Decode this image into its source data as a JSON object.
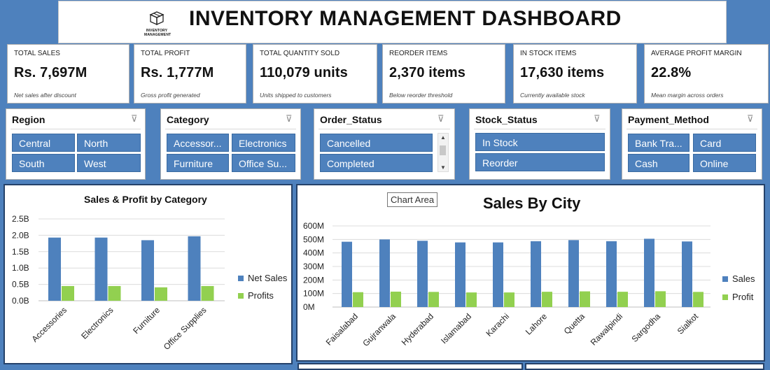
{
  "header": {
    "title": "INVENTORY MANAGEMENT DASHBOARD",
    "logo_text": "INVENTORY MANAGEMENT"
  },
  "kpis": [
    {
      "label": "TOTAL SALES",
      "value": "Rs. 7,697M",
      "sub": "Net sales after discount"
    },
    {
      "label": "TOTAL PROFIT",
      "value": "Rs. 1,777M",
      "sub": "Gross profit generated"
    },
    {
      "label": "TOTAL QUANTITY SOLD",
      "value": "110,079 units",
      "sub": "Units shipped to customers"
    },
    {
      "label": "REORDER ITEMS",
      "value": "2,370 items",
      "sub": "Below reorder threshold"
    },
    {
      "label": "IN STOCK ITEMS",
      "value": "17,630 items",
      "sub": "Currently available stock"
    },
    {
      "label": "AVERAGE PROFIT MARGIN",
      "value": "22.8%",
      "sub": "Mean margin across orders"
    }
  ],
  "slicers": [
    {
      "title": "Region",
      "items": [
        "Central",
        "North",
        "South",
        "West"
      ]
    },
    {
      "title": "Category",
      "items": [
        "Accessor...",
        "Electronics",
        "Furniture",
        "Office Su..."
      ]
    },
    {
      "title": "Order_Status",
      "items": [
        "Cancelled",
        "Completed"
      ]
    },
    {
      "title": "Stock_Status",
      "items": [
        "In Stock",
        "Reorder"
      ]
    },
    {
      "title": "Payment_Method",
      "items": [
        "Bank Tra...",
        "Card",
        "Cash",
        "Online"
      ]
    }
  ],
  "icons": {
    "clear_filter": "filter-clear-icon",
    "scroll_up": "chevron-up-icon",
    "scroll_down": "chevron-down-icon"
  },
  "colors": {
    "background": "#4e81bd",
    "series_blue": "#4e81bd",
    "series_green": "#92d050",
    "border_dark": "#25426a"
  },
  "tooltip": "Chart Area",
  "chart_data": [
    {
      "type": "bar",
      "title": "Sales & Profit by Category",
      "categories": [
        "Accessories",
        "Electronics",
        "Furniture",
        "Office Supplies"
      ],
      "series": [
        {
          "name": "Net Sales",
          "values": [
            1.93,
            1.93,
            1.85,
            1.97
          ]
        },
        {
          "name": "Profits",
          "values": [
            0.45,
            0.45,
            0.41,
            0.45
          ]
        }
      ],
      "yticks": [
        "0.0B",
        "0.5B",
        "1.0B",
        "1.5B",
        "2.0B",
        "2.5B"
      ],
      "ylim": [
        0,
        2.5
      ],
      "unit": "B",
      "grid": true,
      "legend": "right"
    },
    {
      "type": "bar",
      "title": "Sales By City",
      "categories": [
        "Faisalabad",
        "Gujranwala",
        "Hyderabad",
        "Islamabad",
        "Karachi",
        "Lahore",
        "Quetta",
        "Rawalpindi",
        "Sargodha",
        "Sialkot"
      ],
      "series": [
        {
          "name": "Sales",
          "values": [
            483,
            500,
            490,
            478,
            478,
            487,
            495,
            487,
            505,
            485
          ]
        },
        {
          "name": "Profit",
          "values": [
            110,
            114,
            112,
            108,
            108,
            113,
            116,
            113,
            117,
            112
          ]
        }
      ],
      "yticks": [
        "0M",
        "100M",
        "200M",
        "300M",
        "400M",
        "500M",
        "600M"
      ],
      "ylim": [
        0,
        600
      ],
      "unit": "M",
      "grid": true,
      "legend": "right"
    }
  ]
}
